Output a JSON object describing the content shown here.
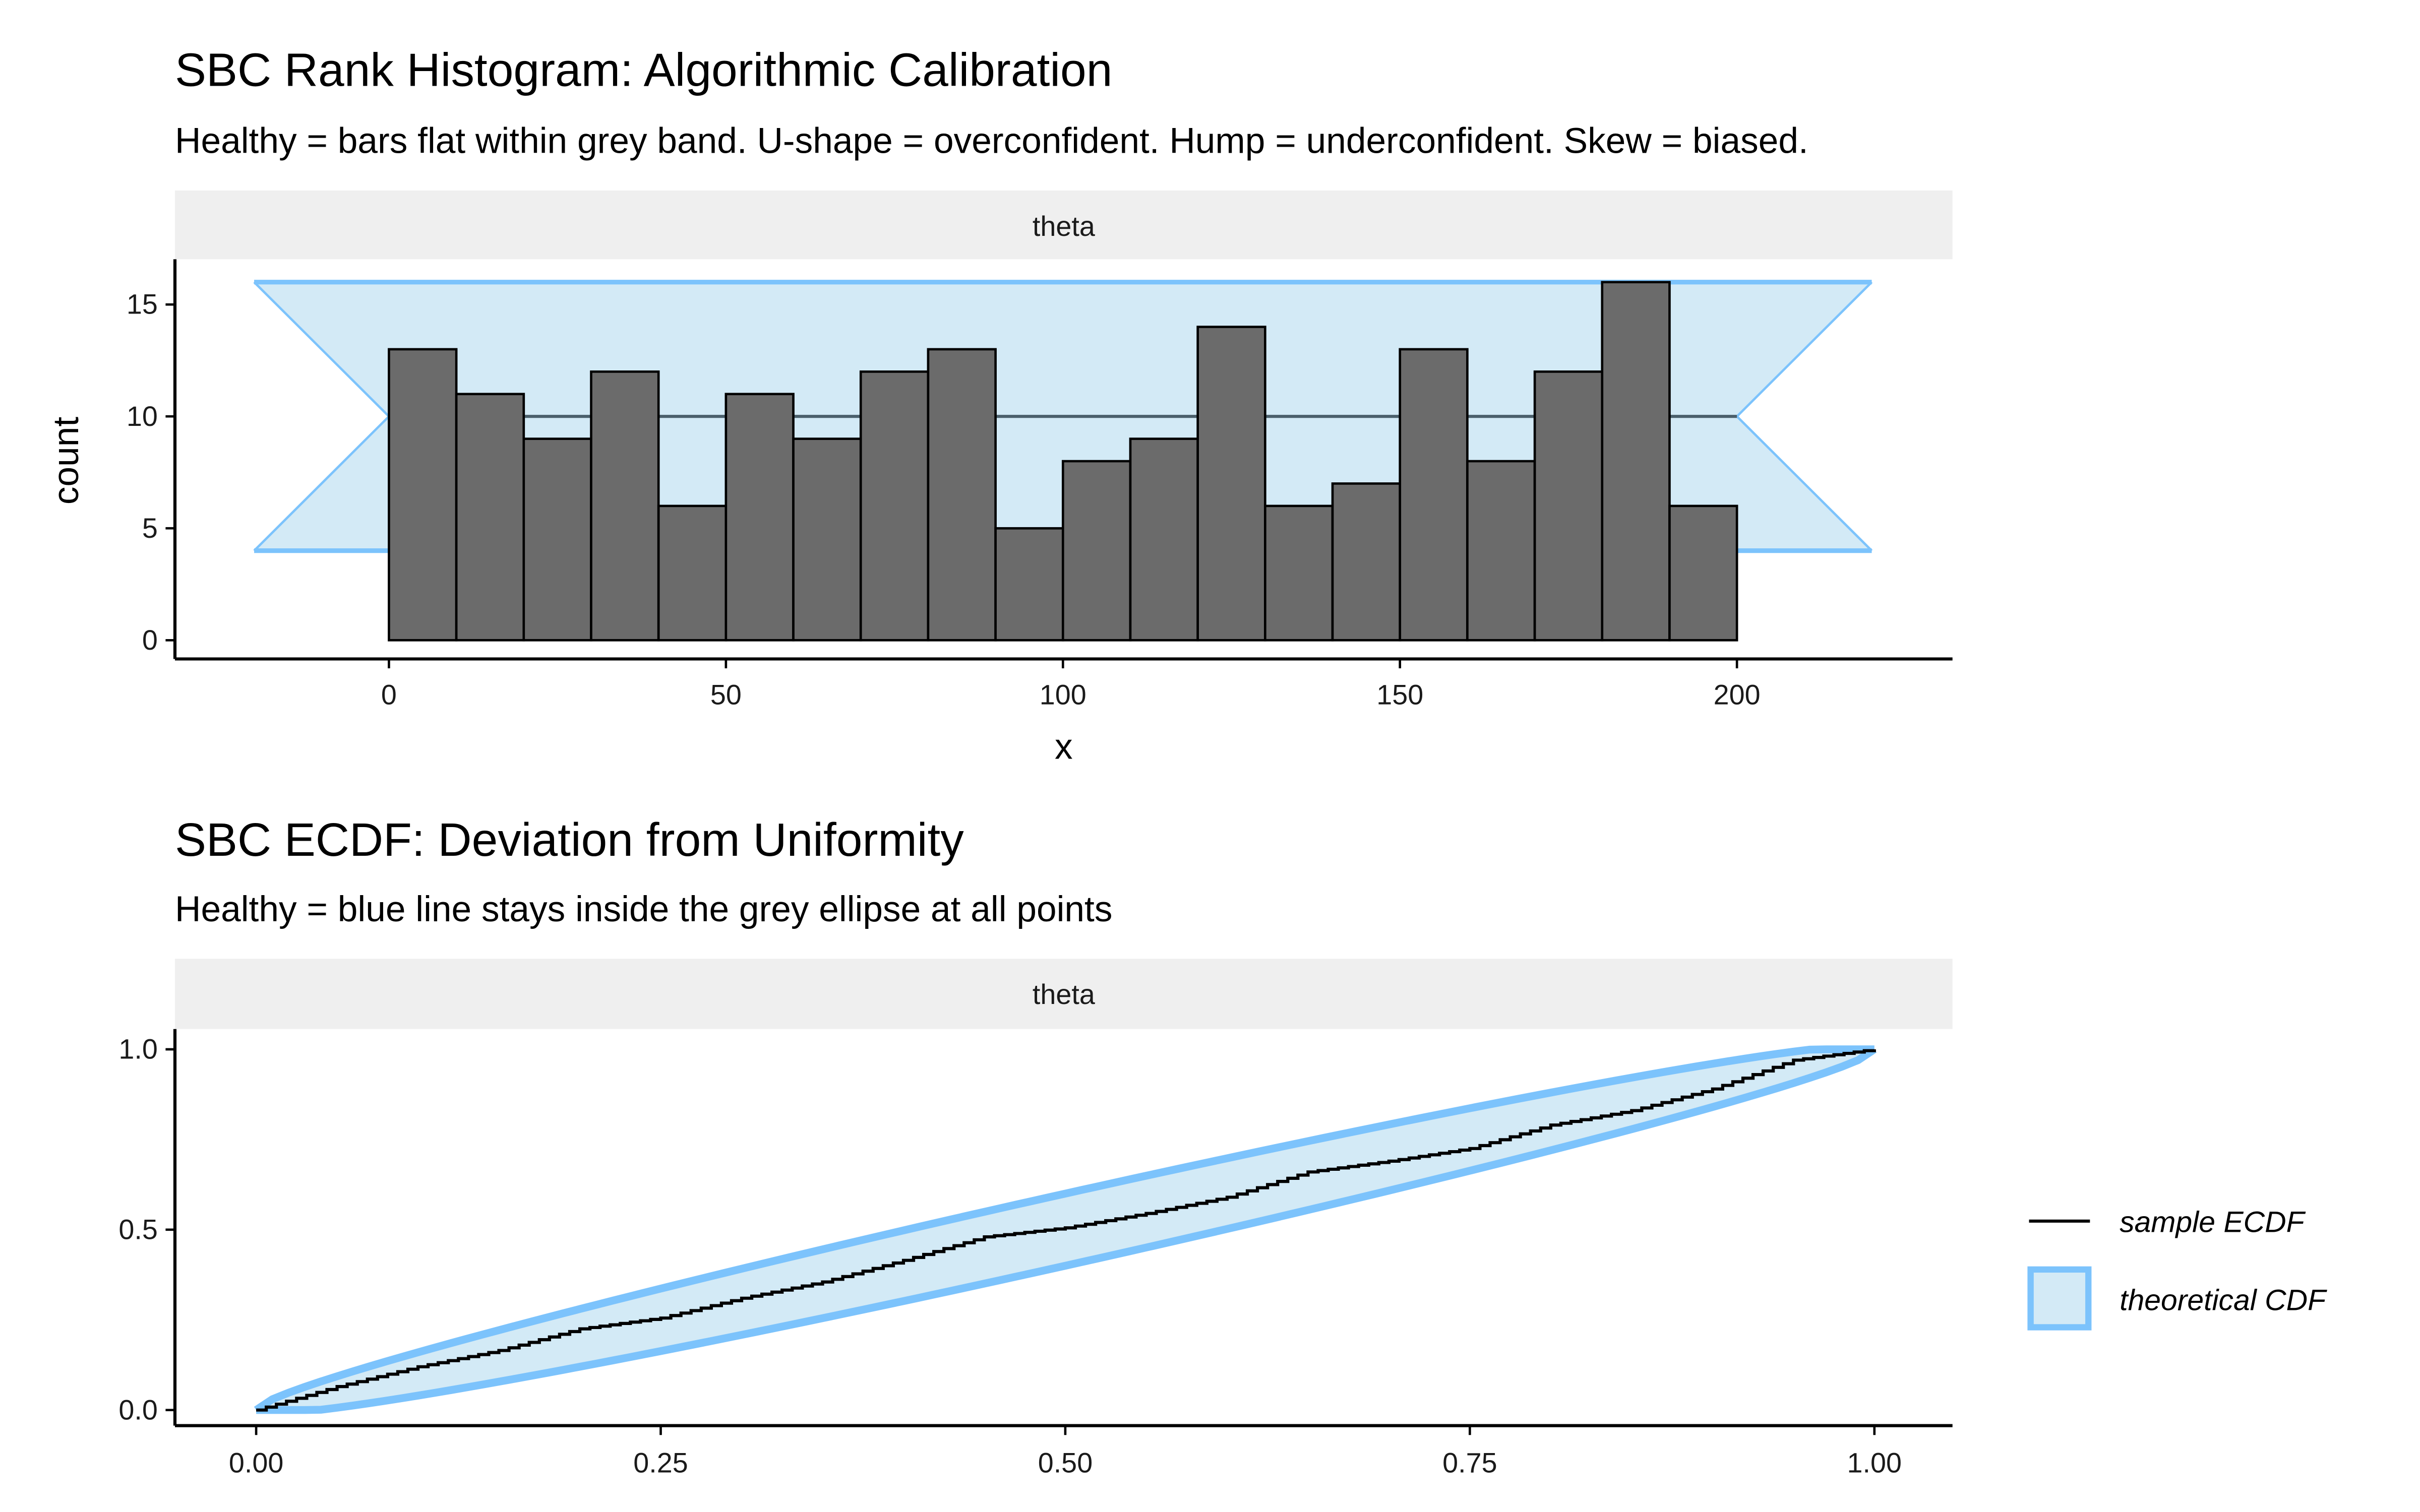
{
  "chart_data": [
    {
      "type": "bar",
      "title": "SBC Rank Histogram: Algorithmic Calibration",
      "subtitle": "Healthy = bars flat within grey band. U-shape = overconfident. Hump = underconfident. Skew = biased.",
      "facet": "theta",
      "xlabel": "x",
      "ylabel": "count",
      "bin_width": 10,
      "bin_starts": [
        0,
        10,
        20,
        30,
        40,
        50,
        60,
        70,
        80,
        90,
        100,
        110,
        120,
        130,
        140,
        150,
        160,
        170,
        180,
        190
      ],
      "values": [
        13,
        11,
        9,
        12,
        6,
        11,
        9,
        12,
        13,
        5,
        8,
        9,
        14,
        6,
        7,
        13,
        8,
        12,
        16,
        6
      ],
      "band": {
        "lower": 4,
        "median": 10,
        "upper": 16,
        "x_range": [
          -20,
          220
        ]
      },
      "xlim": [
        -31,
        232
      ],
      "ylim": [
        -0.8,
        16.8
      ],
      "xticks": [
        0,
        50,
        100,
        150,
        200
      ],
      "xtick_labels": [
        "0",
        "50",
        "100",
        "150",
        "200"
      ],
      "yticks": [
        0,
        5,
        10,
        15
      ],
      "ytick_labels": [
        "0",
        "5",
        "10",
        "15"
      ],
      "colors": {
        "bar": "#6b6b6b",
        "band_fill": "#d3eaf6",
        "band_line": "#7cc3fc",
        "median": "#4a5f6b",
        "strip": "#efefef"
      }
    },
    {
      "type": "line",
      "title": "SBC ECDF: Deviation from Uniformity",
      "subtitle": "Healthy = blue line stays inside the grey ellipse at all points",
      "facet": "theta",
      "x": [
        0,
        0.05,
        0.1,
        0.15,
        0.2,
        0.25,
        0.3,
        0.35,
        0.4,
        0.45,
        0.5,
        0.55,
        0.6,
        0.65,
        0.7,
        0.75,
        0.8,
        0.85,
        0.9,
        0.95,
        1.0
      ],
      "ecdf": [
        0,
        0.065,
        0.12,
        0.165,
        0.225,
        0.255,
        0.31,
        0.355,
        0.415,
        0.48,
        0.505,
        0.545,
        0.59,
        0.66,
        0.69,
        0.725,
        0.79,
        0.83,
        0.89,
        0.97,
        1.0
      ],
      "band_halfwidth_scale": 0.2,
      "xlim": [
        -0.05,
        1.05
      ],
      "ylim": [
        -0.05,
        1.05
      ],
      "xticks": [
        0,
        0.25,
        0.5,
        0.75,
        1.0
      ],
      "xtick_labels": [
        "0.00",
        "0.25",
        "0.50",
        "0.75",
        "1.00"
      ],
      "yticks": [
        0,
        0.5,
        1.0
      ],
      "ytick_labels": [
        "0.0",
        "0.5",
        "1.0"
      ],
      "legend": {
        "position": "right",
        "entries": [
          "sample ECDF",
          "theoretical CDF"
        ]
      },
      "colors": {
        "line": "#000000",
        "band_fill": "#d3eaf6",
        "band_line": "#7cc3fc",
        "strip": "#efefef"
      }
    }
  ]
}
